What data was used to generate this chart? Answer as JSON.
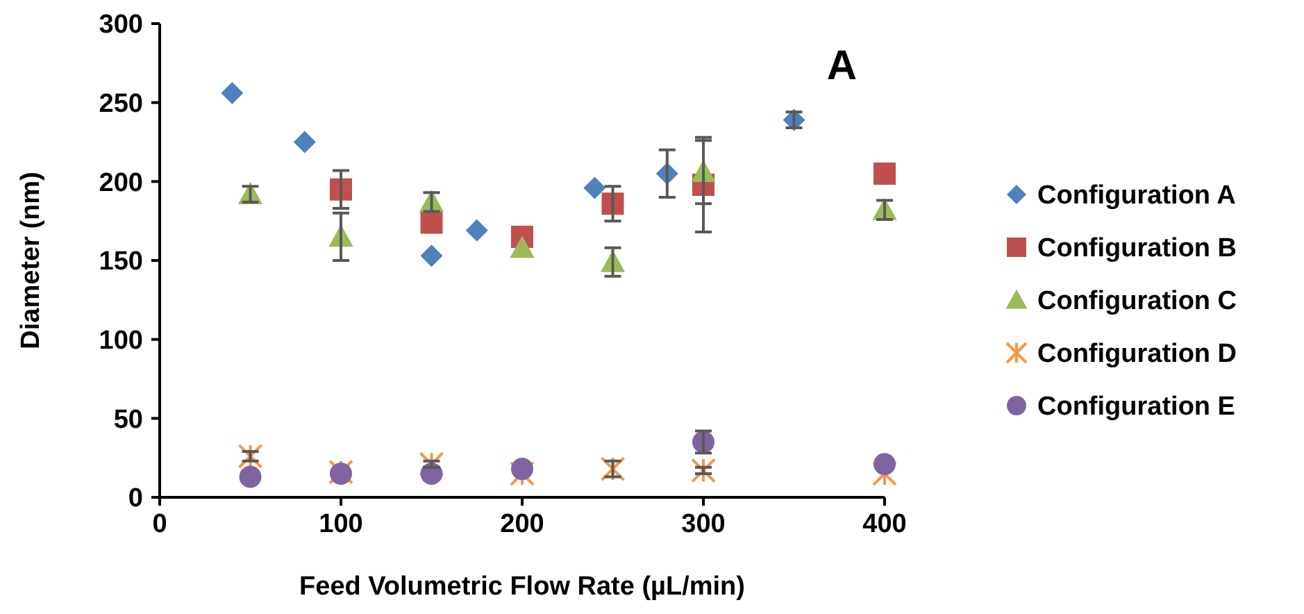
{
  "chart_data": {
    "type": "scatter",
    "xlabel": "Feed Volumetric Flow Rate (µL/min)",
    "ylabel": "Diameter (nm)",
    "annotations": [
      "A"
    ],
    "xlim": [
      0,
      400
    ],
    "xticks": [
      0,
      100,
      200,
      300,
      400
    ],
    "ylim": [
      0,
      300
    ],
    "yticks": [
      0,
      50,
      100,
      150,
      200,
      250,
      300
    ],
    "grid": false,
    "legend": "right",
    "series": [
      {
        "name": "Configuration A",
        "color": "#4f81bd",
        "marker": "diamond",
        "x": [
          40,
          80,
          150,
          175,
          240,
          280,
          350
        ],
        "values": [
          256,
          225,
          153,
          169,
          196,
          205,
          239
        ],
        "errors": [
          null,
          null,
          null,
          null,
          null,
          15,
          5
        ]
      },
      {
        "name": "Configuration B",
        "color": "#c0504d",
        "marker": "square",
        "x": [
          100,
          150,
          200,
          250,
          300,
          400
        ],
        "values": [
          195,
          174,
          165,
          186,
          198,
          205
        ],
        "errors": [
          12,
          null,
          null,
          11,
          30,
          null
        ]
      },
      {
        "name": "Configuration C",
        "color": "#9bbb59",
        "marker": "triangle",
        "x": [
          50,
          100,
          150,
          200,
          250,
          300,
          400
        ],
        "values": [
          192,
          165,
          187,
          158,
          149,
          206,
          182
        ],
        "errors": [
          5,
          15,
          6,
          null,
          9,
          20,
          6
        ]
      },
      {
        "name": "Configuration D",
        "color": "#f79646",
        "marker": "cross",
        "x": [
          50,
          100,
          150,
          200,
          250,
          300,
          400
        ],
        "values": [
          26,
          16,
          21,
          15,
          18,
          17,
          15
        ],
        "errors": [
          3,
          null,
          2,
          null,
          5,
          2,
          null
        ]
      },
      {
        "name": "Configuration E",
        "color": "#8064a2",
        "marker": "circle",
        "x": [
          50,
          100,
          150,
          200,
          300,
          400
        ],
        "values": [
          13,
          15,
          15,
          18,
          35,
          21
        ],
        "errors": [
          null,
          null,
          null,
          null,
          7,
          null
        ]
      }
    ]
  }
}
